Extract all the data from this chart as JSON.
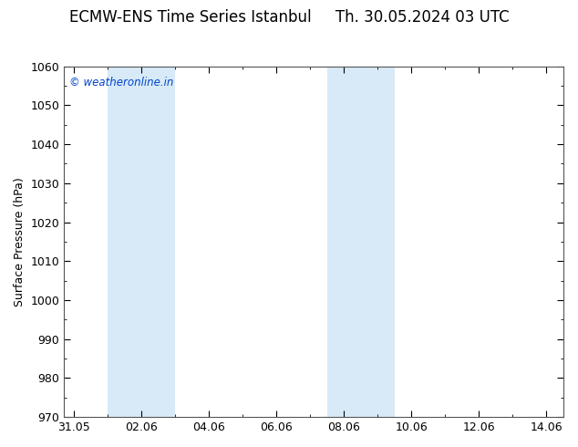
{
  "title": "ECMW-ENS Time Series Istanbul     Th. 30.05.2024 03 UTC",
  "ylabel": "Surface Pressure (hPa)",
  "ylim": [
    970,
    1060
  ],
  "ytick_step": 10,
  "background_color": "#ffffff",
  "plot_bg_color": "#ffffff",
  "shaded_regions": [
    {
      "xstart": 1.0,
      "xend": 3.0,
      "color": "#d8eaf7"
    },
    {
      "xstart": 7.5,
      "xend": 9.5,
      "color": "#d8eaf7"
    }
  ],
  "x_tick_labels": [
    "31.05",
    "02.06",
    "04.06",
    "06.06",
    "08.06",
    "10.06",
    "12.06",
    "14.06"
  ],
  "x_tick_positions": [
    0,
    2,
    4,
    6,
    8,
    10,
    12,
    14
  ],
  "xlim": [
    -0.3,
    14.5
  ],
  "watermark": "© weatheronline.in",
  "watermark_color": "#0044cc",
  "title_fontsize": 12,
  "axis_label_fontsize": 9,
  "tick_fontsize": 9,
  "spine_color": "#555555",
  "fig_width": 6.34,
  "fig_height": 4.9,
  "dpi": 100
}
